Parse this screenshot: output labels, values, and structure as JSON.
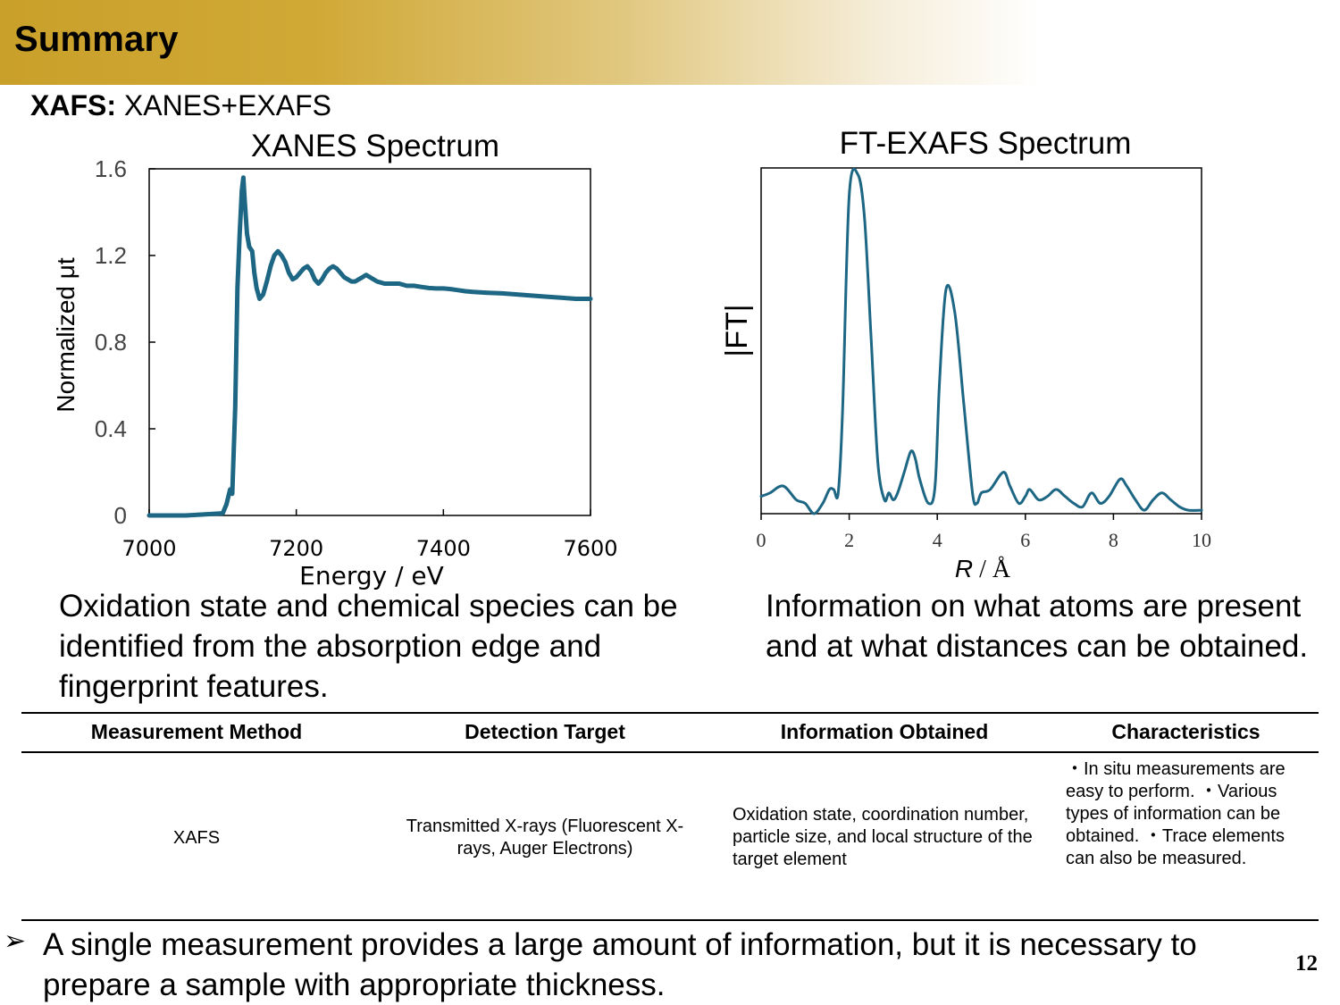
{
  "header": {
    "title": "Summary"
  },
  "subtitle": {
    "bold": "XAFS:",
    "rest": " XANES+EXAFS"
  },
  "colors": {
    "series": "#1d6684",
    "header_gold": "#c9a02a",
    "axis": "#000000"
  },
  "chart_data": [
    {
      "type": "line",
      "title": "XANES Spectrum",
      "xlabel": "Energy / eV",
      "ylabel": "Normalized μt",
      "xlim": [
        7000,
        7600
      ],
      "ylim": [
        0,
        1.6
      ],
      "xticks": [
        "7000",
        "7200",
        "7400",
        "7600"
      ],
      "yticks": [
        "0",
        "0.4",
        "0.8",
        "1.2",
        "1.6"
      ],
      "grid": false,
      "x": [
        7000,
        7050,
        7100,
        7105,
        7110,
        7113,
        7117,
        7120,
        7123,
        7126,
        7128,
        7130,
        7133,
        7136,
        7140,
        7143,
        7146,
        7150,
        7155,
        7160,
        7165,
        7170,
        7175,
        7180,
        7185,
        7190,
        7195,
        7200,
        7205,
        7210,
        7215,
        7220,
        7225,
        7230,
        7235,
        7240,
        7245,
        7250,
        7255,
        7260,
        7265,
        7270,
        7275,
        7280,
        7285,
        7290,
        7295,
        7300,
        7305,
        7310,
        7315,
        7320,
        7325,
        7330,
        7335,
        7340,
        7350,
        7360,
        7370,
        7380,
        7390,
        7400,
        7410,
        7420,
        7430,
        7440,
        7450,
        7460,
        7480,
        7500,
        7520,
        7540,
        7560,
        7580,
        7600
      ],
      "y": [
        0,
        0,
        0.01,
        0.05,
        0.12,
        0.1,
        0.5,
        1.05,
        1.3,
        1.5,
        1.56,
        1.45,
        1.3,
        1.24,
        1.22,
        1.12,
        1.05,
        1.0,
        1.02,
        1.08,
        1.15,
        1.2,
        1.22,
        1.2,
        1.17,
        1.12,
        1.09,
        1.1,
        1.12,
        1.14,
        1.15,
        1.13,
        1.09,
        1.07,
        1.09,
        1.12,
        1.14,
        1.15,
        1.14,
        1.12,
        1.1,
        1.09,
        1.08,
        1.08,
        1.09,
        1.1,
        1.11,
        1.1,
        1.09,
        1.08,
        1.075,
        1.07,
        1.07,
        1.07,
        1.07,
        1.07,
        1.06,
        1.06,
        1.055,
        1.05,
        1.048,
        1.048,
        1.045,
        1.04,
        1.035,
        1.032,
        1.03,
        1.028,
        1.025,
        1.02,
        1.015,
        1.01,
        1.005,
        1.0,
        1.0
      ]
    },
    {
      "type": "line",
      "title": "FT-EXAFS Spectrum",
      "xlabel_italic": "R",
      "xlabel_rest": " / Å",
      "ylabel": "|FT|",
      "xlim": [
        0,
        10
      ],
      "ylim": [
        0,
        1.0
      ],
      "xticks": [
        "0",
        "2",
        "4",
        "6",
        "8",
        "10"
      ],
      "grid": false,
      "x": [
        0,
        0.2,
        0.5,
        0.8,
        1.0,
        1.2,
        1.4,
        1.55,
        1.65,
        1.75,
        1.85,
        2.0,
        2.2,
        2.35,
        2.5,
        2.65,
        2.8,
        2.9,
        3.0,
        3.1,
        3.25,
        3.4,
        3.5,
        3.6,
        3.8,
        3.95,
        4.05,
        4.2,
        4.4,
        4.6,
        4.8,
        4.9,
        5.0,
        5.2,
        5.5,
        5.65,
        5.85,
        6.0,
        6.1,
        6.3,
        6.5,
        6.7,
        6.9,
        7.1,
        7.3,
        7.5,
        7.7,
        7.9,
        8.15,
        8.3,
        8.5,
        8.7,
        8.9,
        9.1,
        9.3,
        9.5,
        9.7,
        10.0
      ],
      "y": [
        0.05,
        0.06,
        0.08,
        0.04,
        0.03,
        0.0,
        0.03,
        0.07,
        0.07,
        0.06,
        0.3,
        0.92,
        0.98,
        0.85,
        0.5,
        0.15,
        0.04,
        0.06,
        0.04,
        0.06,
        0.12,
        0.18,
        0.16,
        0.1,
        0.03,
        0.08,
        0.38,
        0.65,
        0.58,
        0.32,
        0.06,
        0.03,
        0.06,
        0.07,
        0.12,
        0.08,
        0.03,
        0.05,
        0.07,
        0.04,
        0.05,
        0.07,
        0.05,
        0.03,
        0.02,
        0.06,
        0.03,
        0.05,
        0.1,
        0.08,
        0.04,
        0.01,
        0.04,
        0.06,
        0.04,
        0.02,
        0.01,
        0.01
      ]
    }
  ],
  "descriptions": {
    "left": "Oxidation state and chemical species can be identified from the absorption edge and fingerprint features.",
    "right": "Information on what atoms are present and at what distances can be obtained."
  },
  "table": {
    "headers": [
      "Measurement Method",
      "Detection Target",
      "Information Obtained",
      "Characteristics"
    ],
    "row": {
      "method": "XAFS",
      "target": "Transmitted X-rays (Fluorescent X-rays, Auger Electrons)",
      "info": "Oxidation state, coordination number, particle size, and local structure of the target element",
      "characteristics": "・In situ measurements are easy to perform. ・Various types of information can be obtained. ・Trace elements can also be measured."
    }
  },
  "bottom": {
    "bullet": "➢",
    "text": "A single measurement provides a large amount of information, but it is necessary to prepare a sample with appropriate thickness."
  },
  "page_number": "12"
}
